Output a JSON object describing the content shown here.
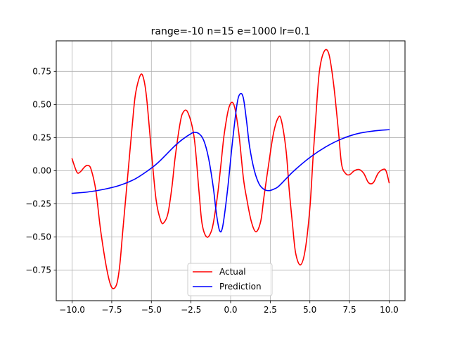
{
  "chart_data": {
    "type": "line",
    "title": "range=-10 n=15 e=1000 lr=0.1",
    "xlabel": "",
    "ylabel": "",
    "xlim": [
      -11,
      11
    ],
    "ylim": [
      -0.98,
      0.98
    ],
    "xticks": [
      -10,
      -7.5,
      -5,
      -2.5,
      0,
      2.5,
      5,
      7.5,
      10
    ],
    "xtick_labels": [
      "−10.0",
      "−7.5",
      "−5.0",
      "−2.5",
      "0.0",
      "2.5",
      "5.0",
      "7.5",
      "10.0"
    ],
    "yticks": [
      -0.75,
      -0.5,
      -0.25,
      0,
      0.25,
      0.5,
      0.75
    ],
    "ytick_labels": [
      "−0.75",
      "−0.50",
      "−0.25",
      "0.00",
      "0.25",
      "0.50",
      "0.75"
    ],
    "grid": true,
    "legend_position": "bottom-center",
    "series": [
      {
        "name": "Actual",
        "color": "#ff0000",
        "x": [
          -10,
          -9.7,
          -9.5,
          -9.2,
          -9.0,
          -8.8,
          -8.5,
          -8.2,
          -7.8,
          -7.5,
          -7.2,
          -7.0,
          -6.8,
          -6.5,
          -6.2,
          -6.0,
          -5.7,
          -5.5,
          -5.3,
          -5.0,
          -4.7,
          -4.4,
          -4.2,
          -3.95,
          -3.7,
          -3.5,
          -3.2,
          -3.0,
          -2.7,
          -2.3,
          -2.0,
          -1.8,
          -1.5,
          -1.2,
          -1.0,
          -0.8,
          -0.6,
          -0.4,
          -0.1,
          0.2,
          0.5,
          0.8,
          1.0,
          1.3,
          1.6,
          1.9,
          2.1,
          2.4,
          2.7,
          3.0,
          3.2,
          3.5,
          3.7,
          3.9,
          4.1,
          4.4,
          4.7,
          5.0,
          5.2,
          5.4,
          5.6,
          5.9,
          6.2,
          6.5,
          6.8,
          7.0,
          7.25,
          7.5,
          7.8,
          8.1,
          8.4,
          8.7,
          9.0,
          9.3,
          9.6,
          9.8,
          10.0
        ],
        "y": [
          0.09,
          -0.01,
          -0.01,
          0.03,
          0.04,
          0.01,
          -0.15,
          -0.45,
          -0.75,
          -0.88,
          -0.86,
          -0.72,
          -0.45,
          -0.05,
          0.35,
          0.58,
          0.72,
          0.7,
          0.55,
          0.15,
          -0.22,
          -0.38,
          -0.39,
          -0.32,
          -0.12,
          0.1,
          0.35,
          0.44,
          0.44,
          0.25,
          -0.15,
          -0.4,
          -0.5,
          -0.45,
          -0.33,
          -0.16,
          0.06,
          0.28,
          0.48,
          0.5,
          0.3,
          -0.05,
          -0.2,
          -0.38,
          -0.46,
          -0.38,
          -0.2,
          0.05,
          0.28,
          0.4,
          0.38,
          0.15,
          -0.15,
          -0.4,
          -0.62,
          -0.71,
          -0.6,
          -0.28,
          0.1,
          0.45,
          0.75,
          0.9,
          0.88,
          0.65,
          0.3,
          0.05,
          -0.02,
          -0.03,
          0.0,
          0.01,
          -0.02,
          -0.09,
          -0.09,
          -0.02,
          0.01,
          0.0,
          -0.09
        ]
      },
      {
        "name": "Prediction",
        "color": "#0000ff",
        "x": [
          -10,
          -9,
          -8,
          -7,
          -6,
          -5,
          -4.5,
          -4,
          -3.5,
          -3,
          -2.5,
          -2.3,
          -2.0,
          -1.7,
          -1.4,
          -1.1,
          -0.9,
          -0.7,
          -0.5,
          -0.2,
          0.1,
          0.4,
          0.6,
          0.8,
          1.0,
          1.2,
          1.5,
          1.8,
          2.1,
          2.4,
          2.7,
          3.0,
          3.5,
          4.0,
          5.0,
          6.0,
          7.0,
          8.0,
          9.0,
          10.0
        ],
        "y": [
          -0.17,
          -0.16,
          -0.14,
          -0.11,
          -0.06,
          0.02,
          0.07,
          0.13,
          0.19,
          0.24,
          0.28,
          0.29,
          0.28,
          0.23,
          0.1,
          -0.12,
          -0.32,
          -0.45,
          -0.42,
          -0.15,
          0.2,
          0.5,
          0.58,
          0.55,
          0.38,
          0.18,
          0.0,
          -0.1,
          -0.14,
          -0.15,
          -0.14,
          -0.12,
          -0.06,
          0.0,
          0.1,
          0.18,
          0.24,
          0.28,
          0.3,
          0.31
        ]
      }
    ]
  }
}
